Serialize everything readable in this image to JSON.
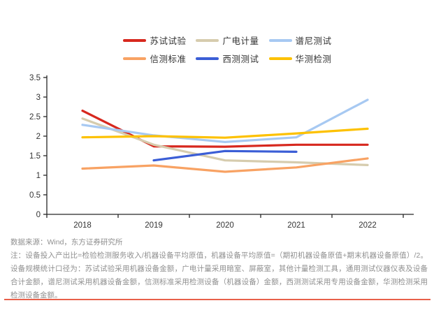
{
  "chart_data": {
    "type": "line",
    "categories": [
      "2018",
      "2019",
      "2020",
      "2021",
      "2022"
    ],
    "series": [
      {
        "name": "苏试试验",
        "color": "#d7281e",
        "values": [
          2.65,
          1.74,
          1.73,
          1.78,
          1.78
        ]
      },
      {
        "name": "广电计量",
        "color": "#d6ccae",
        "values": [
          2.45,
          1.78,
          1.38,
          1.33,
          1.26
        ]
      },
      {
        "name": "谱尼测试",
        "color": "#a7c9f2",
        "values": [
          2.29,
          2.02,
          1.85,
          1.97,
          2.93
        ]
      },
      {
        "name": "信测标准",
        "color": "#f8a263",
        "values": [
          1.17,
          1.25,
          1.09,
          1.2,
          1.43
        ]
      },
      {
        "name": "西测测试",
        "color": "#3b5ed6",
        "values": [
          null,
          1.38,
          1.62,
          1.6,
          null
        ]
      },
      {
        "name": "华测检测",
        "color": "#fdc101",
        "values": [
          1.97,
          2.0,
          1.96,
          2.07,
          2.19
        ]
      }
    ],
    "title": "",
    "xlabel": "",
    "ylabel": "",
    "ylim": [
      0,
      3.5
    ],
    "ytick_step": 0.5,
    "grid": false,
    "legend_position": "top",
    "legend_rows": 3
  },
  "footer": {
    "source": "数据来源：Wind，东方证券研究所",
    "note": "注：设备投入产出比=检验检测服务收入/机器设备平均原值，机器设备平均原值=（期初机器设备原值+期末机器设备原值）/2。设备规模统计口径为：苏试试验采用机器设备金额，广电计量采用暗室、屏蔽室，其他计量检测工具，通用测试仪器仪表及设备合计金额，谱尼测试采用机器设备金额，信测标准采用检测设备（机器设备）金额，西测测试采用专用设备金额，华测检测采用检测设备金额。"
  },
  "colors": {
    "accent_rule": "#e8604a",
    "axis": "#262626",
    "axis_text": "#333333",
    "muted_text": "#8f8f8f"
  }
}
